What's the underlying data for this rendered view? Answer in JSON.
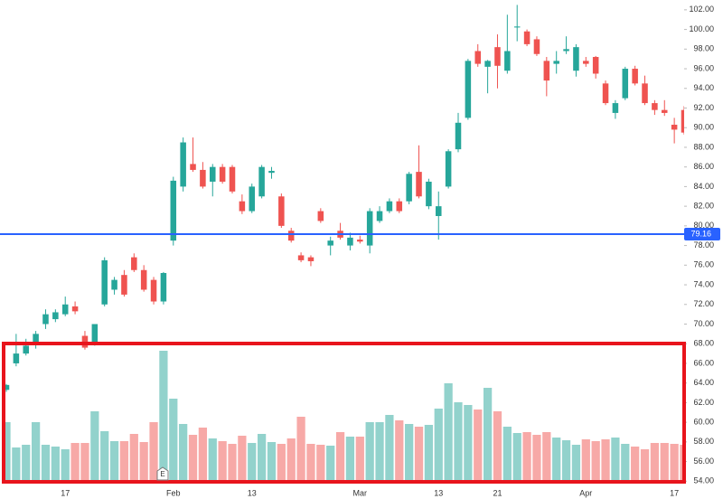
{
  "chart_data": {
    "type": "candlestick",
    "categories": [
      null,
      null,
      null,
      null,
      null,
      null,
      "17",
      null,
      null,
      null,
      null,
      null,
      null,
      null,
      null,
      null,
      null,
      "Feb",
      null,
      null,
      null,
      null,
      null,
      null,
      null,
      "13",
      null,
      null,
      null,
      null,
      null,
      null,
      null,
      null,
      null,
      null,
      "Mar",
      null,
      null,
      null,
      null,
      null,
      null,
      null,
      "13",
      null,
      null,
      null,
      null,
      null,
      "21",
      null,
      null,
      null,
      null,
      null,
      null,
      null,
      null,
      "Apr",
      null,
      null,
      null,
      null,
      null,
      null,
      null,
      null,
      "17",
      null
    ],
    "open": [
      63.3,
      66,
      67,
      68.2,
      70,
      70.5,
      71,
      71.8,
      68.8,
      68,
      72,
      73.5,
      75,
      76.8,
      75.5,
      74.5,
      72.3,
      78.5,
      84,
      86.3,
      85.7,
      84.5,
      86,
      86,
      82.5,
      81.5,
      83,
      85.4,
      83,
      79.5,
      77,
      76.8,
      81.5,
      78,
      79.5,
      78,
      78.6,
      78,
      80.5,
      81.5,
      82.5,
      82.5,
      85.5,
      82,
      81,
      84,
      87.8,
      91,
      97.8,
      96.2,
      98.2,
      95.8,
      100.2,
      99.8,
      99,
      96.8,
      96.5,
      97.8,
      95.8,
      96.8,
      97.2,
      94.5,
      91.5,
      93,
      96,
      94.5,
      92.5,
      91.8,
      90.3,
      91.8
    ],
    "high": [
      63.9,
      69,
      68.5,
      69.3,
      71.5,
      71.5,
      72.8,
      72.3,
      69.3,
      70,
      76.8,
      74.8,
      75.5,
      77.2,
      76,
      74.8,
      75.3,
      85,
      89,
      89,
      86.5,
      86.3,
      86.3,
      86.2,
      83.2,
      84.3,
      86.2,
      86,
      83.3,
      79.8,
      77.3,
      77,
      81.8,
      78.9,
      80.3,
      79.3,
      79,
      81.8,
      82,
      82.8,
      82.8,
      85.5,
      88.2,
      84.8,
      83.5,
      87.8,
      91.5,
      97,
      98.5,
      96.9,
      99.5,
      101.5,
      102.5,
      100,
      99.3,
      97.2,
      97.8,
      99.3,
      98.5,
      97.2,
      97.3,
      94.8,
      92.8,
      96.2,
      96.3,
      95.3,
      92.8,
      92.8,
      91,
      92.2
    ],
    "low": [
      63.1,
      65.7,
      66.8,
      67.5,
      69.5,
      70.2,
      70.8,
      71,
      67.4,
      67.8,
      71.8,
      73,
      72.8,
      75.3,
      73.3,
      72,
      72,
      78,
      83.5,
      85.5,
      83.8,
      83,
      84.3,
      83.3,
      81.2,
      81.3,
      82.8,
      84.8,
      79.8,
      78.3,
      76.3,
      75.9,
      80.3,
      77,
      78.6,
      77.5,
      78.2,
      77.2,
      80.3,
      81.3,
      81.3,
      82.2,
      82.8,
      81.7,
      78.6,
      83.8,
      87.5,
      90.8,
      96.2,
      93.5,
      94,
      95.5,
      98.8,
      98.3,
      97.3,
      93.2,
      95.5,
      97.5,
      95.2,
      96.2,
      95,
      92.3,
      90.9,
      92.8,
      94.3,
      92.3,
      91.3,
      91.2,
      88.4,
      89.3
    ],
    "close": [
      63.8,
      67,
      67.8,
      69,
      71,
      71.2,
      72,
      71.3,
      67.6,
      70,
      76.5,
      74.5,
      73,
      75.5,
      73.5,
      72.3,
      75.2,
      84.6,
      88.5,
      85.7,
      84,
      86,
      84.5,
      83.5,
      81.5,
      84,
      86,
      85.6,
      80,
      78.5,
      76.5,
      76.4,
      80.5,
      78.5,
      78.8,
      78.8,
      78.4,
      81.5,
      81.5,
      82.5,
      81.5,
      85.3,
      83,
      84.5,
      82,
      87.6,
      90.5,
      96.8,
      96.5,
      96.8,
      96.3,
      97.8,
      100.3,
      98.5,
      97.5,
      94.8,
      96.8,
      98,
      98.2,
      96.5,
      95.5,
      92.5,
      92.5,
      96,
      94.5,
      92.5,
      91.8,
      91.5,
      89.8,
      89.5
    ],
    "volume": [
      65,
      37,
      40,
      65,
      40,
      38,
      35,
      42,
      42,
      77,
      55,
      44,
      44,
      52,
      43,
      65,
      144,
      91,
      63,
      51,
      59,
      47,
      44,
      41,
      50,
      42,
      52,
      43,
      41,
      47,
      71,
      41,
      40,
      39,
      54,
      49,
      49,
      65,
      65,
      73,
      67,
      63,
      60,
      62,
      80,
      108,
      87,
      84,
      79,
      103,
      77,
      60,
      53,
      54,
      51,
      54,
      48,
      45,
      40,
      46,
      44,
      46,
      48,
      41,
      38,
      35,
      42,
      42,
      41,
      40
    ],
    "up_color": "#26a69a",
    "down_color": "#ef5350",
    "volume_up_color": "#92d2cc",
    "volume_down_color": "#f7a9a7",
    "ylim": [
      53.2,
      103
    ],
    "yticks": [
      {
        "value": 54,
        "label": "54.00"
      },
      {
        "value": 56,
        "label": "56.00"
      },
      {
        "value": 58,
        "label": "58.00"
      },
      {
        "value": 60,
        "label": "60.00"
      },
      {
        "value": 62,
        "label": "62.00"
      },
      {
        "value": 64,
        "label": "64.00"
      },
      {
        "value": 66,
        "label": "66.00"
      },
      {
        "value": 68,
        "label": "68.00"
      },
      {
        "value": 70,
        "label": "70.00"
      },
      {
        "value": 72,
        "label": "72.00"
      },
      {
        "value": 74,
        "label": "74.00"
      },
      {
        "value": 76,
        "label": "76.00"
      },
      {
        "value": 78,
        "label": "78.00"
      },
      {
        "value": 80,
        "label": "80.00"
      },
      {
        "value": 82,
        "label": "82.00"
      },
      {
        "value": 84,
        "label": "84.00"
      },
      {
        "value": 86,
        "label": "86.00"
      },
      {
        "value": 88,
        "label": "88.00"
      },
      {
        "value": 90,
        "label": "90.00"
      },
      {
        "value": 92,
        "label": "92.00"
      },
      {
        "value": 94,
        "label": "94.00"
      },
      {
        "value": 96,
        "label": "96.00"
      },
      {
        "value": 98,
        "label": "98.00"
      },
      {
        "value": 100,
        "label": "100.00"
      },
      {
        "value": 102,
        "label": "102.00"
      }
    ],
    "price_line": 79.16,
    "price_line_color": "#2962ff",
    "marker": "E"
  }
}
